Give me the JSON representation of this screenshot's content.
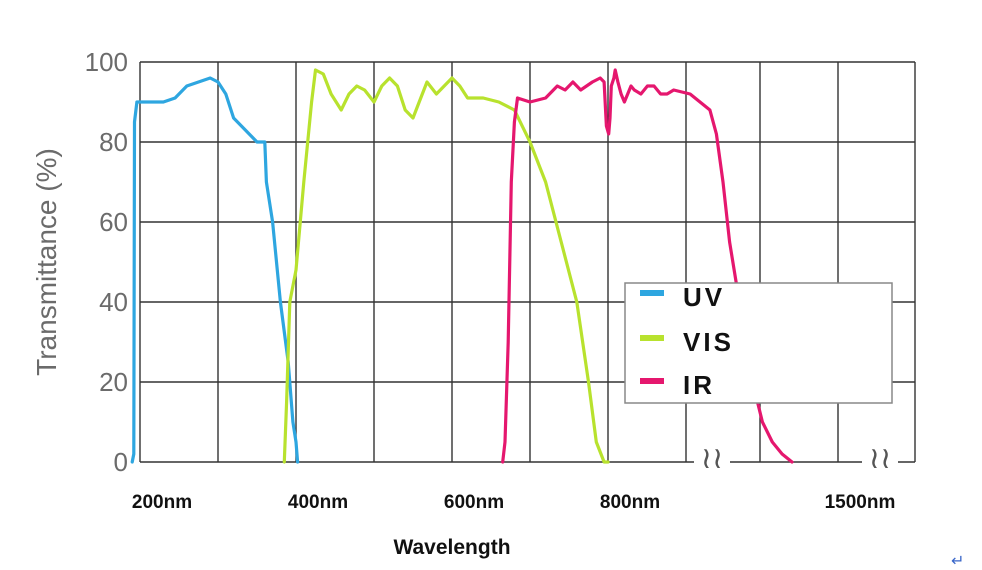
{
  "chart_data": {
    "type": "line",
    "xlabel": "Wavelength",
    "ylabel": "Transmittance (%)",
    "ylim": [
      0,
      100
    ],
    "yticks": [
      "0",
      "20",
      "40",
      "60",
      "80",
      "100"
    ],
    "xtick_labels": [
      {
        "label": "200nm",
        "x": 200
      },
      {
        "label": "400nm",
        "x": 400
      },
      {
        "label": "600nm",
        "x": 600
      },
      {
        "label": "800nm",
        "x": 800
      },
      {
        "label": "1500nm",
        "x": 1500
      }
    ],
    "axis_break": "≀≀",
    "grid": true,
    "legend_position": "lower-right",
    "series": [
      {
        "name": "UV",
        "color": "#2ea6e0",
        "points": [
          [
            190,
            0
          ],
          [
            192,
            2
          ],
          [
            193,
            85
          ],
          [
            196,
            90
          ],
          [
            230,
            90
          ],
          [
            245,
            91
          ],
          [
            260,
            94
          ],
          [
            290,
            96
          ],
          [
            300,
            95
          ],
          [
            310,
            92
          ],
          [
            320,
            86
          ],
          [
            340,
            82
          ],
          [
            350,
            80
          ],
          [
            360,
            80
          ],
          [
            362,
            70
          ],
          [
            370,
            60
          ],
          [
            380,
            40
          ],
          [
            390,
            25
          ],
          [
            396,
            10
          ],
          [
            400,
            5
          ],
          [
            402,
            0
          ]
        ]
      },
      {
        "name": "VIS",
        "color": "#b8e22e",
        "points": [
          [
            385,
            0
          ],
          [
            388,
            15
          ],
          [
            392,
            40
          ],
          [
            400,
            48
          ],
          [
            410,
            70
          ],
          [
            420,
            90
          ],
          [
            425,
            98
          ],
          [
            435,
            97
          ],
          [
            445,
            92
          ],
          [
            458,
            88
          ],
          [
            468,
            92
          ],
          [
            478,
            94
          ],
          [
            488,
            93
          ],
          [
            500,
            90
          ],
          [
            510,
            94
          ],
          [
            520,
            96
          ],
          [
            530,
            94
          ],
          [
            540,
            88
          ],
          [
            550,
            86
          ],
          [
            558,
            90
          ],
          [
            568,
            95
          ],
          [
            580,
            92
          ],
          [
            590,
            94
          ],
          [
            600,
            96
          ],
          [
            610,
            94
          ],
          [
            620,
            91
          ],
          [
            640,
            91
          ],
          [
            660,
            90
          ],
          [
            680,
            88
          ],
          [
            700,
            80
          ],
          [
            720,
            70
          ],
          [
            740,
            55
          ],
          [
            760,
            40
          ],
          [
            775,
            20
          ],
          [
            785,
            5
          ],
          [
            795,
            0
          ],
          [
            800,
            0
          ]
        ]
      },
      {
        "name": "IR",
        "color": "#e5176e",
        "points": [
          [
            665,
            0
          ],
          [
            668,
            5
          ],
          [
            672,
            30
          ],
          [
            676,
            70
          ],
          [
            680,
            85
          ],
          [
            684,
            91
          ],
          [
            700,
            90
          ],
          [
            720,
            91
          ],
          [
            735,
            94
          ],
          [
            745,
            93
          ],
          [
            755,
            95
          ],
          [
            765,
            93
          ],
          [
            780,
            95
          ],
          [
            790,
            96
          ],
          [
            795,
            95
          ],
          [
            798,
            84
          ],
          [
            802,
            82
          ],
          [
            806,
            86
          ],
          [
            810,
            94
          ],
          [
            818,
            96
          ],
          [
            822,
            98
          ],
          [
            830,
            95
          ],
          [
            840,
            92
          ],
          [
            850,
            90
          ],
          [
            860,
            92
          ],
          [
            870,
            94
          ],
          [
            880,
            93
          ],
          [
            900,
            92
          ],
          [
            920,
            94
          ],
          [
            940,
            94
          ],
          [
            960,
            92
          ],
          [
            980,
            92
          ],
          [
            1000,
            93
          ],
          [
            1050,
            92
          ],
          [
            1080,
            90
          ],
          [
            1110,
            88
          ],
          [
            1130,
            82
          ],
          [
            1150,
            70
          ],
          [
            1170,
            55
          ],
          [
            1190,
            45
          ],
          [
            1210,
            35
          ],
          [
            1240,
            20
          ],
          [
            1270,
            10
          ],
          [
            1300,
            5
          ],
          [
            1330,
            2
          ],
          [
            1360,
            0
          ]
        ]
      }
    ]
  },
  "footer": {
    "return_mark": "↵"
  }
}
